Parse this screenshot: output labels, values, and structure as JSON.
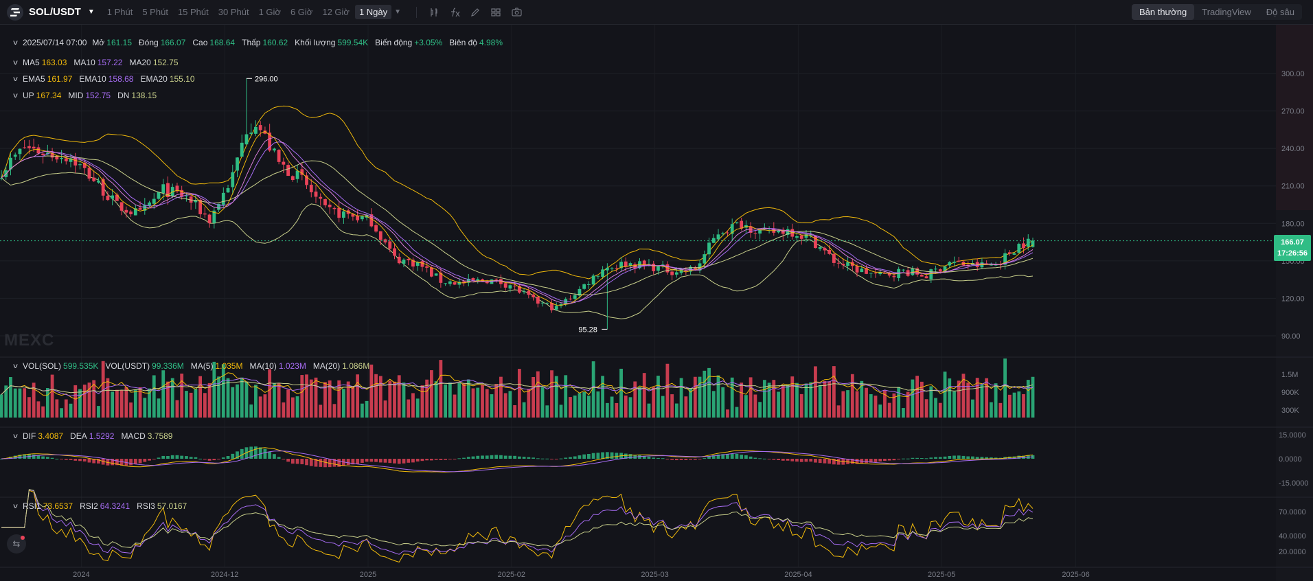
{
  "header": {
    "pair": "SOL/USDT",
    "timeframes": [
      "1 Phút",
      "5 Phút",
      "15 Phút",
      "30 Phút",
      "1 Giờ",
      "6 Giờ",
      "12 Giờ",
      "1 Ngày"
    ],
    "active_timeframe": "1 Ngày",
    "view_modes": [
      "Bản thường",
      "TradingView",
      "Độ sâu"
    ],
    "active_view": "Bản thường"
  },
  "ohlc": {
    "date": "2025/07/14 07:00",
    "open_label": "Mở",
    "open": "161.15",
    "close_label": "Đóng",
    "close": "166.07",
    "high_label": "Cao",
    "high": "168.64",
    "low_label": "Thấp",
    "low": "160.62",
    "volume_label": "Khối lượng",
    "volume": "599.54K",
    "change_label": "Biến động",
    "change": "+3.05%",
    "amplitude_label": "Biên độ",
    "amplitude": "4.98%"
  },
  "indicators": {
    "ma": [
      {
        "name": "MA5",
        "value": "163.03"
      },
      {
        "name": "MA10",
        "value": "157.22"
      },
      {
        "name": "MA20",
        "value": "152.75"
      }
    ],
    "ema": [
      {
        "name": "EMA5",
        "value": "161.97"
      },
      {
        "name": "EMA10",
        "value": "158.68"
      },
      {
        "name": "EMA20",
        "value": "155.10"
      }
    ],
    "boll": [
      {
        "name": "UP",
        "value": "167.34"
      },
      {
        "name": "MID",
        "value": "152.75"
      },
      {
        "name": "DN",
        "value": "138.15"
      }
    ],
    "vol": [
      {
        "name": "VOL(SOL)",
        "value": "599.535K"
      },
      {
        "name": "VOL(USDT)",
        "value": "99.336M"
      },
      {
        "name": "MA(5)",
        "value": "1.035M"
      },
      {
        "name": "MA(10)",
        "value": "1.023M"
      },
      {
        "name": "MA(20)",
        "value": "1.086M"
      }
    ],
    "macd": [
      {
        "name": "DIF",
        "value": "3.4087"
      },
      {
        "name": "DEA",
        "value": "1.5292"
      },
      {
        "name": "MACD",
        "value": "3.7589"
      }
    ],
    "rsi": [
      {
        "name": "RSI1",
        "value": "73.6537"
      },
      {
        "name": "RSI2",
        "value": "64.3241"
      },
      {
        "name": "RSI3",
        "value": "57.0167"
      }
    ]
  },
  "watermark": "MEXC",
  "last_price": {
    "price": "166.07",
    "countdown": "17:26:56"
  },
  "colors": {
    "up": "#2fbd85",
    "down": "#e94359",
    "ma5": "#f0b90b",
    "ma10": "#a66cf2",
    "ma20": "#c8cf8b"
  },
  "chart_data": {
    "type": "candlestick",
    "x_ticks": [
      "2024",
      "2024-12",
      "2025",
      "2025-02",
      "2025-03",
      "2025-04",
      "2025-05",
      "2025-06"
    ],
    "price_axis": {
      "ticks": [
        "300.00",
        "270.00",
        "240.00",
        "210.00",
        "180.00",
        "150.00",
        "120.00",
        "90.00"
      ],
      "range": [
        80,
        320
      ]
    },
    "extremes": {
      "high": "296.00",
      "low": "95.28"
    },
    "price_path": [
      [
        0,
        222
      ],
      [
        5,
        241
      ],
      [
        10,
        236
      ],
      [
        15,
        233
      ],
      [
        20,
        215
      ],
      [
        25,
        194
      ],
      [
        30,
        187
      ],
      [
        35,
        207
      ],
      [
        40,
        201
      ],
      [
        45,
        183
      ],
      [
        50,
        218
      ],
      [
        53,
        256
      ],
      [
        55,
        262
      ],
      [
        60,
        228
      ],
      [
        65,
        215
      ],
      [
        70,
        190
      ],
      [
        75,
        187
      ],
      [
        80,
        182
      ],
      [
        85,
        152
      ],
      [
        90,
        148
      ],
      [
        95,
        134
      ],
      [
        100,
        132
      ],
      [
        105,
        135
      ],
      [
        110,
        131
      ],
      [
        115,
        118
      ],
      [
        120,
        112
      ],
      [
        125,
        127
      ],
      [
        130,
        144
      ],
      [
        135,
        148
      ],
      [
        140,
        146
      ],
      [
        145,
        142
      ],
      [
        150,
        143
      ],
      [
        155,
        173
      ],
      [
        160,
        180
      ],
      [
        165,
        172
      ],
      [
        170,
        175
      ],
      [
        175,
        168
      ],
      [
        180,
        150
      ],
      [
        185,
        143
      ],
      [
        190,
        138
      ],
      [
        195,
        142
      ],
      [
        200,
        138
      ],
      [
        205,
        149
      ],
      [
        210,
        146
      ],
      [
        215,
        147
      ],
      [
        220,
        163
      ],
      [
        223,
        166.07
      ]
    ],
    "volume_axis": {
      "ticks": [
        "1.5M",
        "900K",
        "300K"
      ]
    },
    "macd_axis": {
      "ticks": [
        "15.0000",
        "0.0000",
        "-15.0000"
      ]
    },
    "rsi_axis": {
      "ticks": [
        "70.0000",
        "40.0000",
        "20.0000"
      ]
    }
  }
}
